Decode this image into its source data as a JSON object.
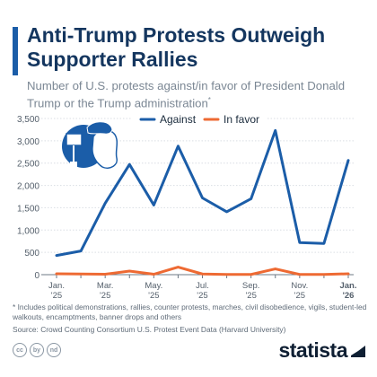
{
  "header": {
    "title": "Anti-Trump Protests Outweigh Supporter Rallies",
    "subtitle": "Number of U.S. protests against/in favor of President Donald Trump or the Trump administration",
    "subtitle_marker": "*"
  },
  "colors": {
    "against": "#1b5da8",
    "in_favor": "#ee6a33",
    "accent": "#1b5da8"
  },
  "chart_data": {
    "type": "line",
    "x": [
      "Jan. '25",
      "Feb. '25",
      "Mar. '25",
      "Apr. '25",
      "May. '25",
      "Jun. '25",
      "Jul. '25",
      "Aug. '25",
      "Sep. '25",
      "Oct. '25",
      "Nov. '25",
      "Dec. '25",
      "Jan. '26"
    ],
    "x_tick_labels": [
      {
        "index": 0,
        "lines": [
          "Jan.",
          "'25"
        ]
      },
      {
        "index": 2,
        "lines": [
          "Mar.",
          "'25"
        ]
      },
      {
        "index": 4,
        "lines": [
          "May.",
          "'25"
        ]
      },
      {
        "index": 6,
        "lines": [
          "Jul.",
          "'25"
        ]
      },
      {
        "index": 8,
        "lines": [
          "Sep.",
          "'25"
        ]
      },
      {
        "index": 10,
        "lines": [
          "Nov.",
          "'25"
        ]
      },
      {
        "index": 12,
        "lines": [
          "Jan.",
          "'26"
        ]
      }
    ],
    "series": [
      {
        "name": "Against",
        "values": [
          430,
          530,
          1600,
          2470,
          1560,
          2880,
          1720,
          1410,
          1700,
          3230,
          720,
          700,
          2560
        ]
      },
      {
        "name": "In favor",
        "values": [
          20,
          15,
          10,
          80,
          10,
          170,
          15,
          5,
          5,
          130,
          5,
          5,
          20
        ]
      }
    ],
    "y_ticks": [
      0,
      500,
      1000,
      1500,
      2000,
      2500,
      3000,
      3500
    ],
    "y_tick_labels": [
      "0",
      "500",
      "1,000",
      "1,500",
      "2,000",
      "2,500",
      "3,000",
      "3,500"
    ],
    "ylim": [
      0,
      3500
    ],
    "grid": true,
    "legend_position": "top"
  },
  "footnote": "* Includes political demonstrations, rallies, counter protests, marches, civil disobedience, vigils, student-led walkouts, encamptments, banner drops and others",
  "source": "Source: Crowd Counting Consortium U.S. Protest Event Data (Harvard University)",
  "brand": {
    "name": "statista",
    "license_icons": [
      "cc",
      "by",
      "nd"
    ]
  }
}
